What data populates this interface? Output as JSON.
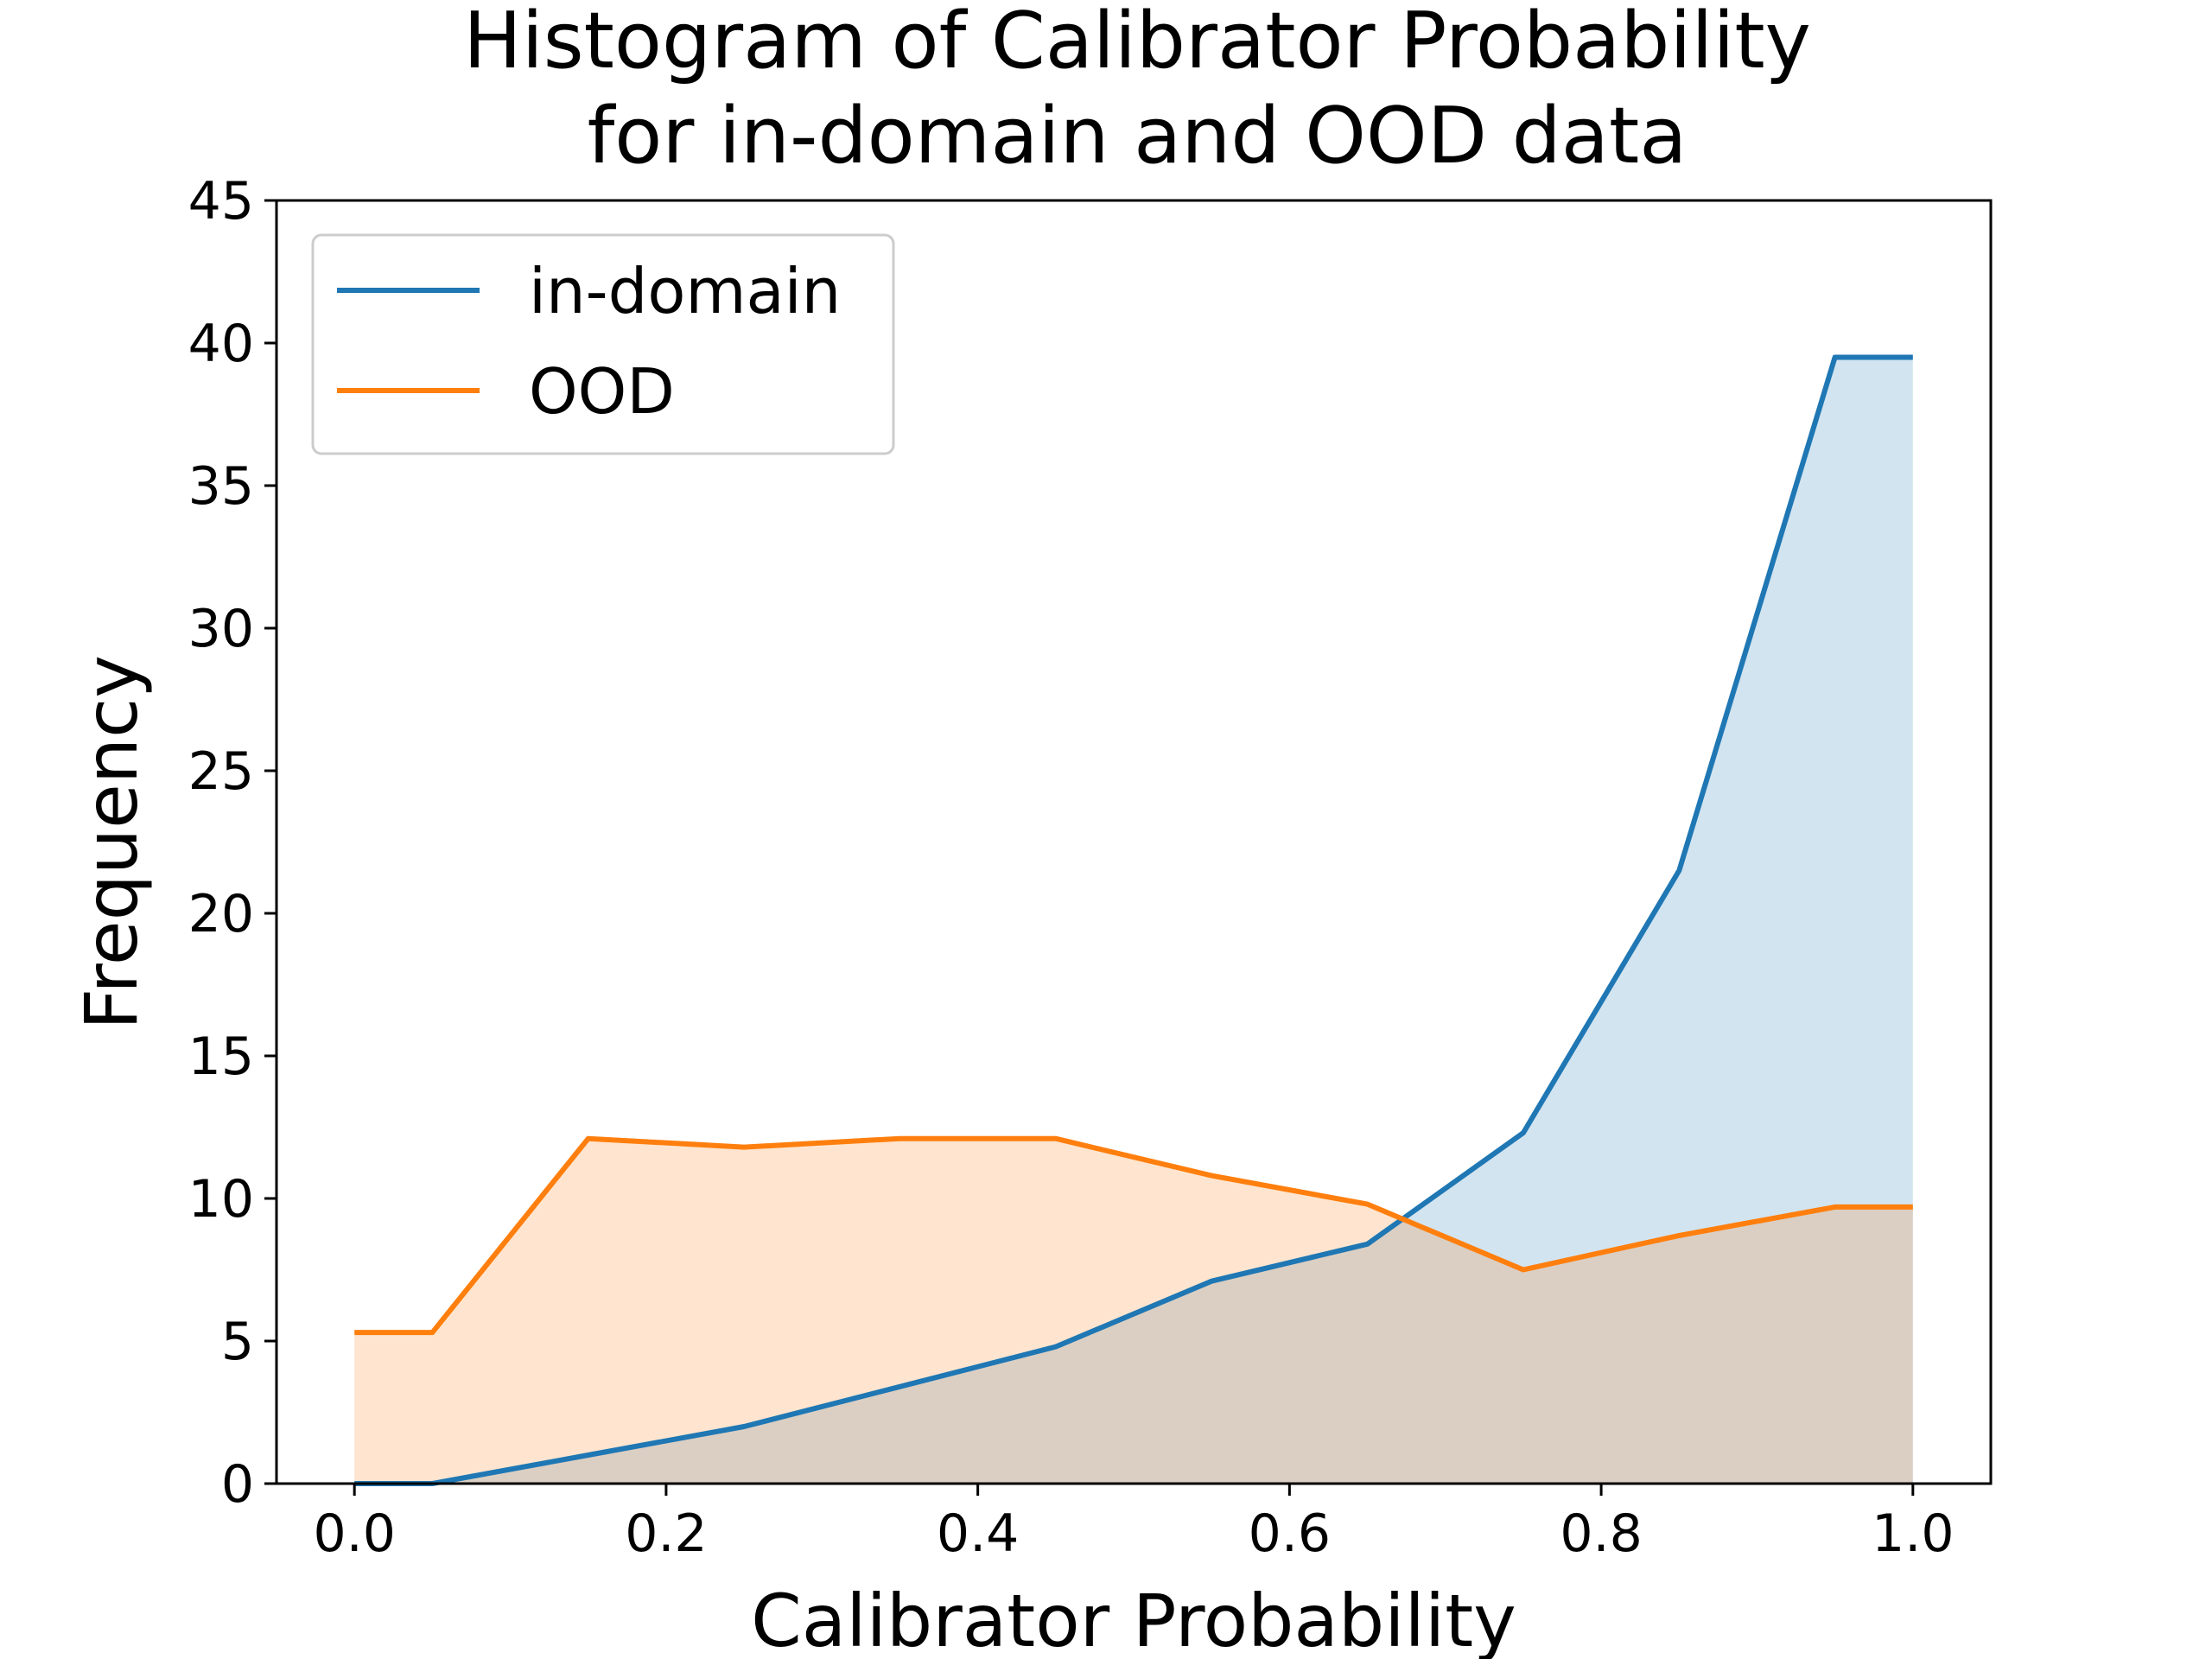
{
  "chart_data": {
    "type": "line",
    "title_lines": [
      "Histogram of Calibrator Probability",
      "for in-domain and OOD data"
    ],
    "xlabel": "Calibrator Probability",
    "ylabel": "Frequency",
    "xlim": [
      -0.05,
      1.05
    ],
    "ylim": [
      0,
      45
    ],
    "x_ticks": [
      0.0,
      0.2,
      0.4,
      0.6,
      0.8,
      1.0
    ],
    "x_tick_labels": [
      "0.0",
      "0.2",
      "0.4",
      "0.6",
      "0.8",
      "1.0"
    ],
    "y_ticks": [
      0,
      5,
      10,
      15,
      20,
      25,
      30,
      35,
      40,
      45
    ],
    "y_tick_labels": [
      "0",
      "5",
      "10",
      "15",
      "20",
      "25",
      "30",
      "35",
      "40",
      "45"
    ],
    "grid": false,
    "legend_position": "upper-left",
    "filled": true,
    "x": [
      0.0,
      0.05,
      0.15,
      0.25,
      0.35,
      0.45,
      0.55,
      0.65,
      0.75,
      0.85,
      0.95,
      1.0
    ],
    "series": [
      {
        "name": "in-domain",
        "color": "#1f77b4",
        "values": [
          0,
          0,
          1.0,
          2.0,
          3.4,
          4.8,
          7.1,
          8.4,
          12.3,
          21.5,
          39.5,
          39.5
        ]
      },
      {
        "name": "OOD",
        "color": "#ff7f0e",
        "values": [
          5.3,
          5.3,
          12.1,
          11.8,
          12.1,
          12.1,
          10.8,
          9.8,
          7.5,
          8.7,
          9.7,
          9.7
        ]
      }
    ]
  }
}
